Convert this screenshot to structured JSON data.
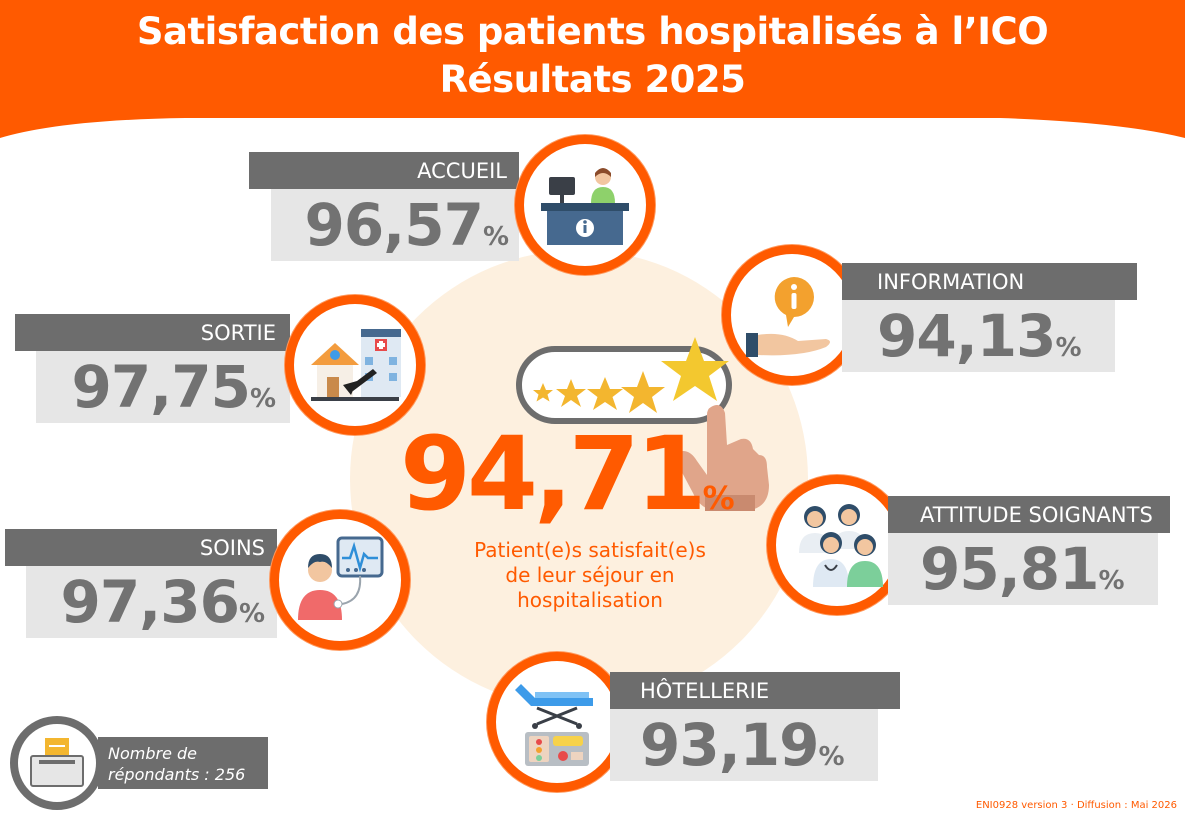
{
  "header": {
    "title_line1": "Satisfaction des patients hospitalisés à l’ICO",
    "title_line2": "Résultats 2025"
  },
  "colors": {
    "accent": "#ff5a00",
    "label_bg": "#6d6d6d",
    "value_bg": "#e6e6e6",
    "value_text": "#727272",
    "glow": "#fdf0df"
  },
  "overall": {
    "value": "94,71",
    "unit": "%",
    "caption_line1": "Patient(e)s satisfait(e)s",
    "caption_line2": "de leur séjour en",
    "caption_line3": "hospitalisation"
  },
  "categories": {
    "accueil": {
      "label": "ACCUEIL",
      "value": "96,57",
      "unit": "%",
      "icon": "reception-desk-icon"
    },
    "information": {
      "label": "INFORMATION",
      "value": "94,13",
      "unit": "%",
      "icon": "info-hand-icon"
    },
    "sortie": {
      "label": "SORTIE",
      "value": "97,75",
      "unit": "%",
      "icon": "house-hospital-icon"
    },
    "attitude": {
      "label": "ATTITUDE SOIGNANTS",
      "value": "95,81",
      "unit": "%",
      "icon": "care-staff-icon"
    },
    "soins": {
      "label": "SOINS",
      "value": "97,36",
      "unit": "%",
      "icon": "patient-monitor-icon"
    },
    "hotellerie": {
      "label": "HÔTELLERIE",
      "value": "93,19",
      "unit": "%",
      "icon": "bed-meal-icon"
    }
  },
  "respondents": {
    "line1": "Nombre de",
    "line2": "répondants : 256",
    "icon": "ballot-box-icon"
  },
  "footer": {
    "text": "ENI0928 version 3 · Diffusion : Mai 2026"
  }
}
